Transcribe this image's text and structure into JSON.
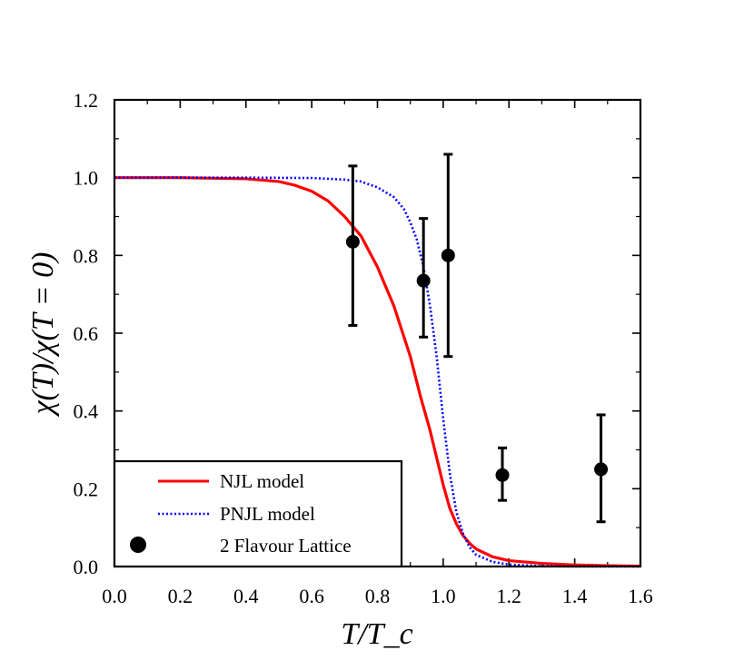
{
  "chart_data": {
    "type": "line",
    "title": "",
    "xlabel": "T/T_c",
    "ylabel": "χ(T)/χ(T = 0)",
    "xlim": [
      0.0,
      1.6
    ],
    "ylim": [
      0.0,
      1.2
    ],
    "x_ticks": [
      "0.0",
      "0.2",
      "0.4",
      "0.6",
      "0.8",
      "1.0",
      "1.2",
      "1.4",
      "1.6"
    ],
    "y_ticks": [
      "0.0",
      "0.2",
      "0.4",
      "0.6",
      "0.8",
      "1.0",
      "1.2"
    ],
    "grid": false,
    "legend_position": "bottom-left",
    "series": [
      {
        "name": "NJL model",
        "style": "solid",
        "color": "#ff0000",
        "x": [
          0.0,
          0.2,
          0.4,
          0.5,
          0.55,
          0.6,
          0.65,
          0.7,
          0.75,
          0.8,
          0.85,
          0.9,
          0.93,
          0.96,
          0.98,
          1.0,
          1.02,
          1.04,
          1.06,
          1.08,
          1.1,
          1.15,
          1.2,
          1.3,
          1.4,
          1.5,
          1.6
        ],
        "y": [
          1.0,
          1.0,
          0.997,
          0.99,
          0.98,
          0.965,
          0.94,
          0.9,
          0.85,
          0.77,
          0.67,
          0.54,
          0.44,
          0.35,
          0.28,
          0.21,
          0.15,
          0.11,
          0.08,
          0.06,
          0.045,
          0.025,
          0.015,
          0.008,
          0.004,
          0.002,
          0.001
        ]
      },
      {
        "name": "PNJL model",
        "style": "dotted",
        "color": "#0000ff",
        "x": [
          0.0,
          0.4,
          0.6,
          0.7,
          0.75,
          0.8,
          0.85,
          0.88,
          0.9,
          0.92,
          0.94,
          0.96,
          0.98,
          1.0,
          1.02,
          1.04,
          1.06,
          1.08,
          1.1,
          1.15,
          1.2,
          1.3,
          1.4,
          1.6
        ],
        "y": [
          1.0,
          1.0,
          0.999,
          0.995,
          0.99,
          0.975,
          0.95,
          0.92,
          0.885,
          0.84,
          0.77,
          0.67,
          0.54,
          0.38,
          0.24,
          0.14,
          0.085,
          0.05,
          0.03,
          0.012,
          0.005,
          0.001,
          0.0,
          0.0
        ]
      },
      {
        "name": "2 Flavour Lattice",
        "style": "points",
        "color": "#000000",
        "x": [
          0.725,
          0.94,
          1.015,
          1.18,
          1.48
        ],
        "y": [
          0.835,
          0.735,
          0.8,
          0.235,
          0.25
        ],
        "err_low": [
          0.62,
          0.59,
          0.54,
          0.17,
          0.115
        ],
        "err_high": [
          1.03,
          0.895,
          1.06,
          0.305,
          0.39
        ]
      }
    ]
  }
}
